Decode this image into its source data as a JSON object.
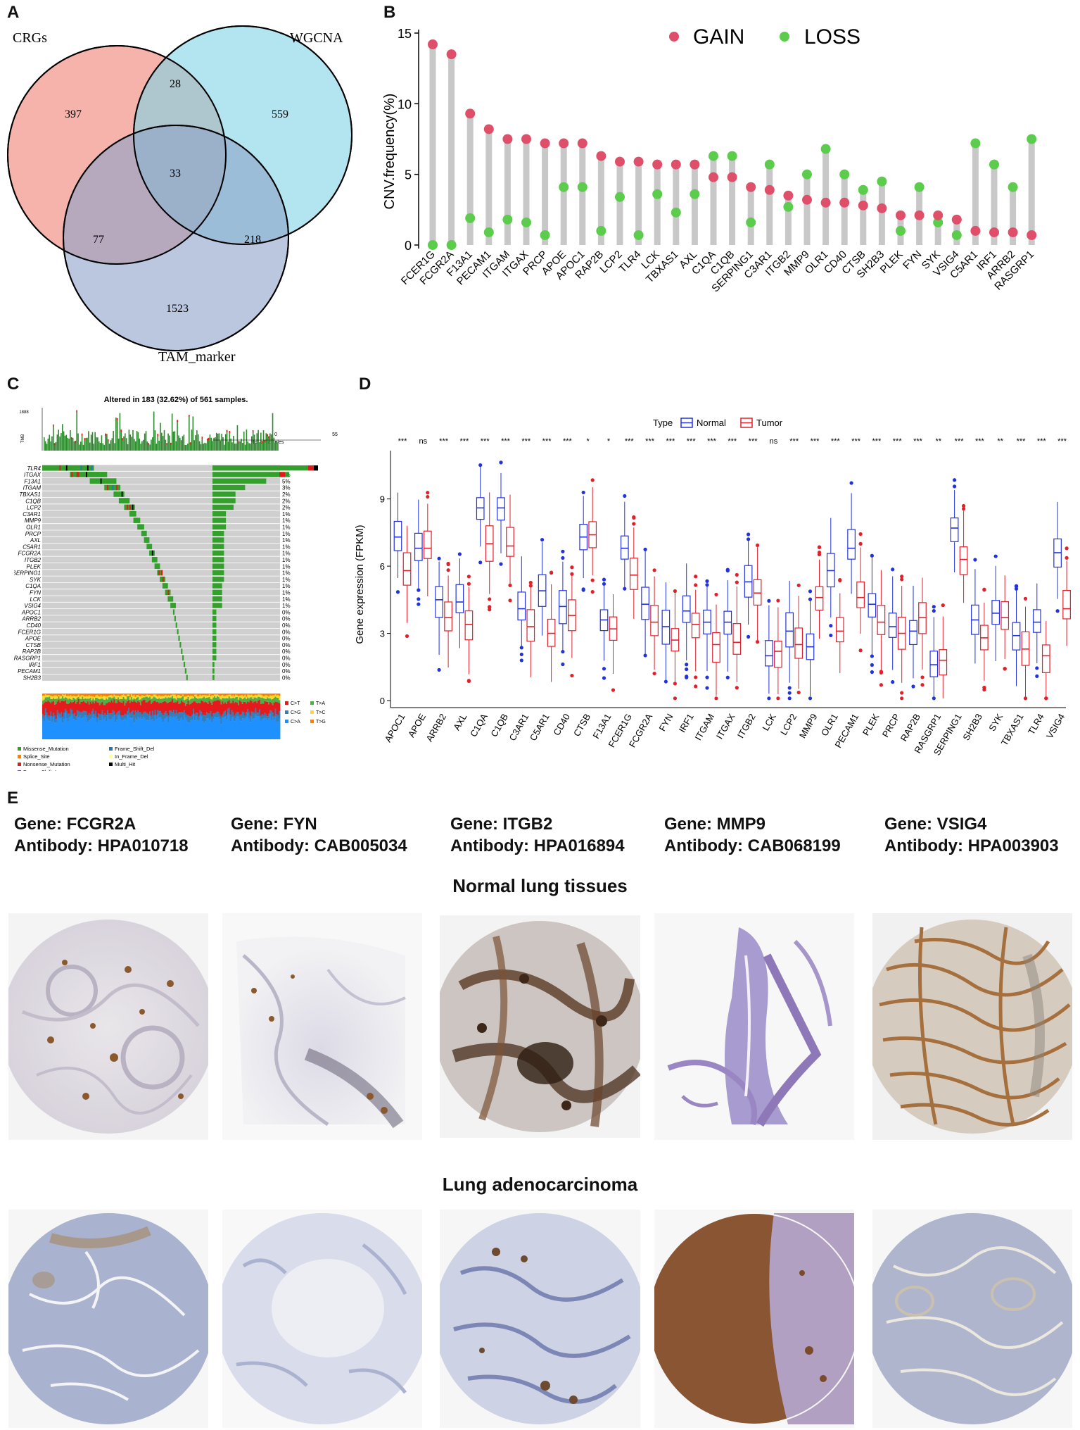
{
  "panel_labels": {
    "a": "A",
    "b": "B",
    "c": "C",
    "d": "D",
    "e": "E"
  },
  "venn": {
    "sets": [
      {
        "name": "CRGs",
        "color": "#f08a80"
      },
      {
        "name": "WGCNA",
        "color": "#7fd4e4"
      },
      {
        "name": "TAM_marker",
        "color": "#8ea2c8"
      }
    ],
    "regions": {
      "crgs_only": "397",
      "wgcna_only": "559",
      "tam_only": "1523",
      "crgs_wgcna": "28",
      "crgs_tam": "77",
      "wgcna_tam": "218",
      "all_three": "33"
    }
  },
  "chart_data": [
    {
      "type": "lollipop",
      "panel": "B",
      "ylabel": "CNV.frequency(%)",
      "ylim": [
        0,
        15
      ],
      "yticks": [
        "0",
        "5",
        "10",
        "15"
      ],
      "legend": {
        "gain_label": "GAIN",
        "loss_label": "LOSS",
        "gain_color": "#e04f6a",
        "loss_color": "#5ccc4c"
      },
      "genes": [
        "FCER1G",
        "FCGR2A",
        "F13A1",
        "PECAM1",
        "ITGAM",
        "ITGAX",
        "PRCP",
        "APOE",
        "APOC1",
        "RAP2B",
        "LCP2",
        "TLR4",
        "LCK",
        "TBXAS1",
        "AXL",
        "C1QA",
        "C1QB",
        "SERPING1",
        "C3AR1",
        "ITGB2",
        "MMP9",
        "OLR1",
        "CD40",
        "CTSB",
        "SH2B3",
        "PLEK",
        "FYN",
        "SYK",
        "VSIG4",
        "C5AR1",
        "IRF1",
        "ARRB2",
        "RASGRP1"
      ],
      "gain": [
        14.2,
        13.5,
        9.3,
        8.2,
        7.5,
        7.5,
        7.2,
        7.2,
        7.2,
        6.3,
        5.9,
        5.9,
        5.7,
        5.7,
        5.7,
        4.8,
        4.8,
        4.1,
        3.9,
        3.5,
        3.2,
        3.0,
        3.0,
        2.8,
        2.6,
        2.1,
        2.1,
        2.1,
        1.8,
        1.0,
        0.9,
        0.9,
        0.7
      ],
      "loss": [
        0.0,
        0.0,
        1.9,
        0.9,
        1.8,
        1.6,
        0.7,
        4.1,
        4.1,
        1.0,
        3.4,
        0.7,
        3.6,
        2.3,
        3.6,
        6.3,
        6.3,
        1.6,
        5.7,
        2.7,
        5.0,
        6.8,
        5.0,
        3.9,
        4.5,
        1.0,
        4.1,
        1.6,
        0.7,
        7.2,
        5.7,
        4.1,
        7.5
      ]
    },
    {
      "type": "oncoplot",
      "panel": "C",
      "title": "Altered in 183 (32.62%) of 561 samples.",
      "tmb_label": "TMB",
      "tmb_max": "1888",
      "samples_axis_label": "No. of samples",
      "samples_axis_ticks": [
        "0",
        "55"
      ],
      "genes": [
        "TLR4",
        "ITGAX",
        "F13A1",
        "ITGAM",
        "TBXAS1",
        "C1QB",
        "LCP2",
        "C3AR1",
        "MMP9",
        "OLR1",
        "PRCP",
        "AXL",
        "C5AR1",
        "FCGR2A",
        "ITGB2",
        "PLEK",
        "SERPING1",
        "SYK",
        "C1QA",
        "FYN",
        "LCK",
        "VSIG4",
        "APOC1",
        "ARRB2",
        "CD40",
        "FCER1G",
        "APOE",
        "CTSB",
        "RAP2B",
        "RASGRP1",
        "IRF1",
        "PECAM1",
        "SH2B3"
      ],
      "percent": [
        "10%",
        "7%",
        "5%",
        "3%",
        "2%",
        "2%",
        "2%",
        "1%",
        "1%",
        "1%",
        "1%",
        "1%",
        "1%",
        "1%",
        "1%",
        "1%",
        "1%",
        "1%",
        "1%",
        "1%",
        "1%",
        "1%",
        "0%",
        "0%",
        "0%",
        "0%",
        "0%",
        "0%",
        "0%",
        "0%",
        "0%",
        "0%",
        "0%"
      ],
      "counts": [
        55,
        40,
        28,
        17,
        12,
        12,
        11,
        7,
        7,
        7,
        6,
        6,
        6,
        6,
        6,
        6,
        6,
        6,
        5,
        5,
        5,
        5,
        2,
        2,
        2,
        2,
        2,
        2,
        2,
        2,
        1,
        1,
        1
      ],
      "titv_legend": [
        {
          "label": "C>T",
          "color": "#e41a1c"
        },
        {
          "label": "T>A",
          "color": "#4daf4a"
        },
        {
          "label": "C>G",
          "color": "#377eb8"
        },
        {
          "label": "T>C",
          "color": "#ffd92f"
        },
        {
          "label": "C>A",
          "color": "#1e90ff"
        },
        {
          "label": "T>G",
          "color": "#ff7f00"
        }
      ],
      "variant_legend": [
        {
          "label": "Missense_Mutation",
          "color": "#33a02c"
        },
        {
          "label": "Frame_Shift_Del",
          "color": "#1f78b4"
        },
        {
          "label": "Splice_Site",
          "color": "#ff7f00"
        },
        {
          "label": "In_Frame_Del",
          "color": "#ffff99"
        },
        {
          "label": "Nonsense_Mutation",
          "color": "#e31a1c"
        },
        {
          "label": "Multi_Hit",
          "color": "#000000"
        },
        {
          "label": "Frame_Shift_Ins",
          "color": "#6a3d9a"
        }
      ]
    },
    {
      "type": "boxplot",
      "panel": "D",
      "ylabel": "Gene expression (FPKM)",
      "ylim": [
        0,
        11
      ],
      "yticks": [
        "0",
        "3",
        "6",
        "9"
      ],
      "legend_title": "Type",
      "series": [
        {
          "name": "Normal",
          "color": "#2233dd"
        },
        {
          "name": "Tumor",
          "color": "#e0202a"
        }
      ],
      "genes": [
        "APOC1",
        "APOE",
        "ARRB2",
        "AXL",
        "C1QA",
        "C1QB",
        "C3AR1",
        "C5AR1",
        "CD40",
        "CTSB",
        "F13A1",
        "FCER1G",
        "FCGR2A",
        "FYN",
        "IRF1",
        "ITGAM",
        "ITGAX",
        "ITGB2",
        "LCK",
        "LCP2",
        "MMP9",
        "OLR1",
        "PECAM1",
        "PLEK",
        "PRCP",
        "RAP2B",
        "RASGRP1",
        "SERPING1",
        "SH2B3",
        "SYK",
        "TBXAS1",
        "TLR4",
        "VSIG4"
      ],
      "significance": [
        "***",
        "ns",
        "***",
        "***",
        "***",
        "***",
        "***",
        "***",
        "***",
        "*",
        "*",
        "***",
        "***",
        "***",
        "***",
        "***",
        "***",
        "***",
        "ns",
        "***",
        "***",
        "***",
        "***",
        "***",
        "***",
        "***",
        "**",
        "***",
        "***",
        "**",
        "***",
        "***",
        "***"
      ],
      "normal_median": [
        7.3,
        6.8,
        4.5,
        4.4,
        8.6,
        8.6,
        4.1,
        4.9,
        4.2,
        7.3,
        3.6,
        6.8,
        4.3,
        3.3,
        4.0,
        3.5,
        3.5,
        5.3,
        2.0,
        3.1,
        2.4,
        5.8,
        6.8,
        4.3,
        3.3,
        3.1,
        1.6,
        7.7,
        3.6,
        3.9,
        2.9,
        3.5,
        6.6
      ],
      "tumor_median": [
        5.8,
        6.8,
        3.7,
        3.4,
        7.0,
        6.9,
        3.3,
        3.0,
        3.8,
        7.4,
        3.2,
        5.6,
        3.5,
        2.7,
        3.4,
        2.5,
        2.6,
        4.8,
        2.2,
        2.5,
        4.6,
        3.1,
        4.6,
        3.5,
        3.0,
        3.7,
        1.8,
        6.3,
        2.8,
        3.7,
        2.3,
        2.0,
        4.1
      ]
    }
  ],
  "ihc": {
    "genes": [
      {
        "gene": "Gene: FCGR2A",
        "antibody": "Antibody: HPA010718"
      },
      {
        "gene": "Gene: FYN",
        "antibody": "Antibody: CAB005034"
      },
      {
        "gene": "Gene: ITGB2",
        "antibody": "Antibody: HPA016894"
      },
      {
        "gene": "Gene: MMP9",
        "antibody": "Antibody: CAB068199"
      },
      {
        "gene": "Gene: VSIG4",
        "antibody": "Antibody: HPA003903"
      }
    ],
    "normal_title": "Normal lung tissues",
    "tumor_title": "Lung adenocarcinoma",
    "stain_colors": {
      "brown": "#8a5a2e",
      "blue": "#8c97c2",
      "purple": "#8e78b8"
    }
  }
}
